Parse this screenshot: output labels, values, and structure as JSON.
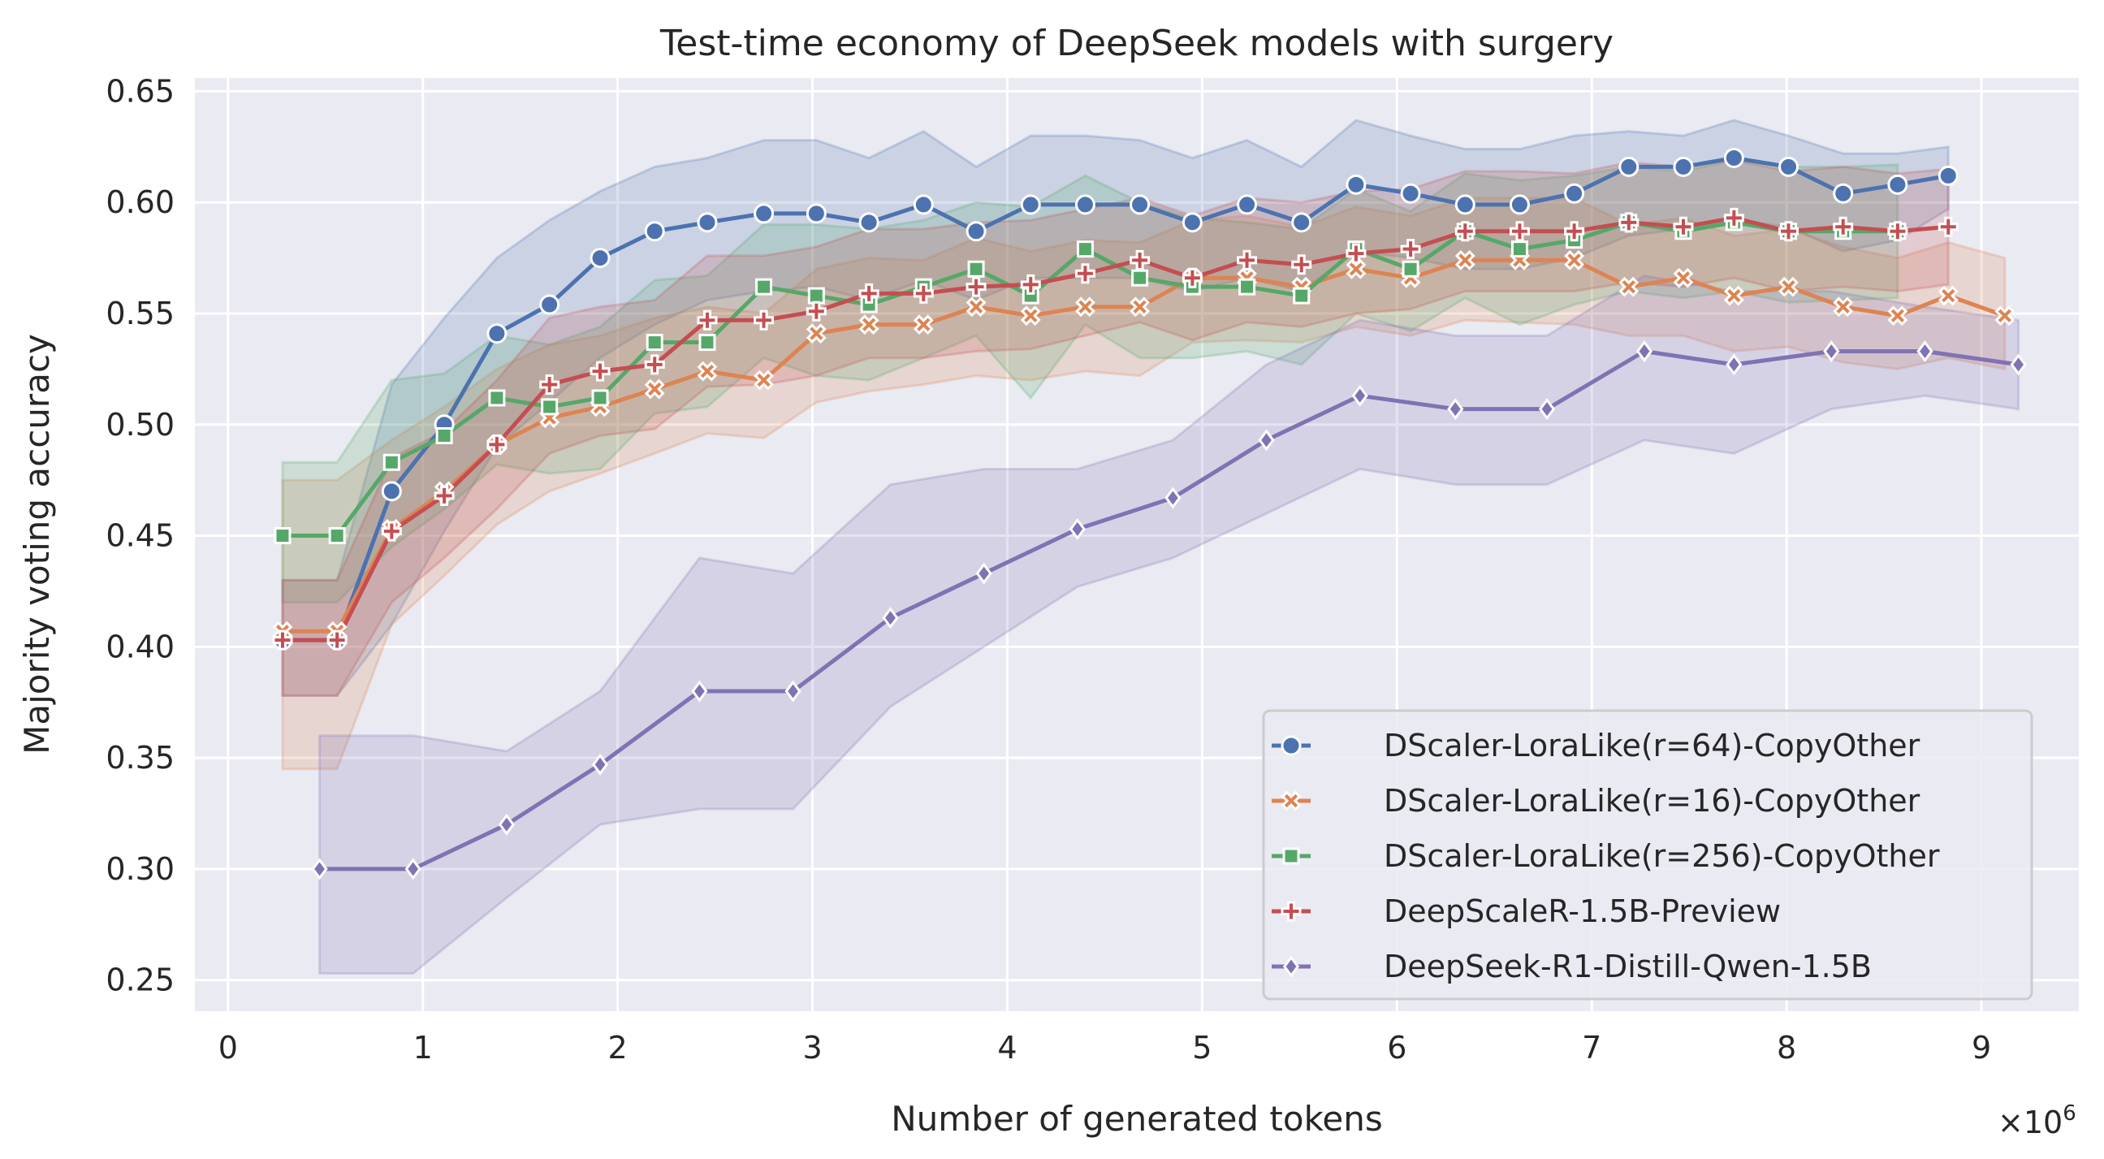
{
  "chart_data": {
    "type": "line",
    "title": "Test-time economy of DeepSeek models with surgery",
    "xlabel": "Number of generated tokens",
    "ylabel": "Majority voting accuracy",
    "x_multiplier_label": "×10^6",
    "x_multiplier_base": "×10",
    "x_multiplier_exp": "6",
    "xlim": [
      -0.17,
      9.5
    ],
    "ylim": [
      0.236,
      0.656
    ],
    "xticks": [
      0,
      1,
      2,
      3,
      4,
      5,
      6,
      7,
      8,
      9
    ],
    "xtick_labels": [
      "0",
      "1",
      "2",
      "3",
      "4",
      "5",
      "6",
      "7",
      "8",
      "9"
    ],
    "yticks": [
      0.25,
      0.3,
      0.35,
      0.4,
      0.45,
      0.5,
      0.55,
      0.6,
      0.65
    ],
    "ytick_labels": [
      "0.25",
      "0.30",
      "0.35",
      "0.40",
      "0.45",
      "0.50",
      "0.55",
      "0.60",
      "0.65"
    ],
    "grid": true,
    "legend_position": "lower-right",
    "background": "#eaeaf2",
    "series": [
      {
        "name": "DScaler-LoraLike(r=64)-CopyOther",
        "color": "#4c72b0",
        "marker": "circle",
        "x": [
          0.28,
          0.56,
          0.84,
          1.11,
          1.38,
          1.65,
          1.91,
          2.19,
          2.46,
          2.75,
          3.02,
          3.29,
          3.57,
          3.84,
          4.12,
          4.4,
          4.68,
          4.95,
          5.23,
          5.51,
          5.79,
          6.07,
          6.35,
          6.63,
          6.91,
          7.19,
          7.47,
          7.73,
          8.01,
          8.29,
          8.57,
          8.83
        ],
        "y": [
          0.403,
          0.403,
          0.47,
          0.5,
          0.541,
          0.554,
          0.575,
          0.587,
          0.591,
          0.595,
          0.595,
          0.591,
          0.599,
          0.587,
          0.599,
          0.599,
          0.599,
          0.591,
          0.599,
          0.591,
          0.608,
          0.604,
          0.599,
          0.599,
          0.604,
          0.616,
          0.616,
          0.62,
          0.616,
          0.604,
          0.608,
          0.612
        ],
        "lower": [
          0.378,
          0.378,
          0.41,
          0.452,
          0.49,
          0.51,
          0.53,
          0.545,
          0.556,
          0.56,
          0.562,
          0.556,
          0.565,
          0.556,
          0.566,
          0.566,
          0.566,
          0.56,
          0.566,
          0.56,
          0.578,
          0.575,
          0.57,
          0.57,
          0.575,
          0.585,
          0.588,
          0.592,
          0.589,
          0.578,
          0.583,
          0.597
        ],
        "upper": [
          0.43,
          0.43,
          0.518,
          0.548,
          0.575,
          0.592,
          0.605,
          0.616,
          0.62,
          0.628,
          0.628,
          0.62,
          0.632,
          0.616,
          0.63,
          0.63,
          0.628,
          0.62,
          0.628,
          0.616,
          0.637,
          0.63,
          0.624,
          0.624,
          0.63,
          0.632,
          0.63,
          0.637,
          0.63,
          0.622,
          0.622,
          0.625
        ]
      },
      {
        "name": "DScaler-LoraLike(r=16)-CopyOther",
        "color": "#dd8452",
        "marker": "x",
        "x": [
          0.28,
          0.56,
          0.84,
          1.11,
          1.38,
          1.65,
          1.91,
          2.19,
          2.46,
          2.75,
          3.02,
          3.29,
          3.57,
          3.84,
          4.12,
          4.4,
          4.68,
          4.95,
          5.23,
          5.51,
          5.79,
          6.07,
          6.35,
          6.63,
          6.91,
          7.19,
          7.47,
          7.73,
          8.01,
          8.29,
          8.57,
          8.83,
          9.12
        ],
        "y": [
          0.407,
          0.407,
          0.453,
          0.47,
          0.491,
          0.503,
          0.508,
          0.516,
          0.524,
          0.52,
          0.541,
          0.545,
          0.545,
          0.553,
          0.549,
          0.553,
          0.553,
          0.566,
          0.566,
          0.562,
          0.57,
          0.566,
          0.574,
          0.574,
          0.574,
          0.562,
          0.566,
          0.558,
          0.562,
          0.553,
          0.549,
          0.558,
          0.549
        ],
        "lower": [
          0.345,
          0.345,
          0.41,
          0.432,
          0.455,
          0.47,
          0.478,
          0.487,
          0.496,
          0.494,
          0.51,
          0.515,
          0.518,
          0.522,
          0.52,
          0.524,
          0.522,
          0.537,
          0.538,
          0.537,
          0.544,
          0.54,
          0.547,
          0.546,
          0.545,
          0.54,
          0.54,
          0.533,
          0.535,
          0.528,
          0.525,
          0.53,
          0.525
        ],
        "upper": [
          0.475,
          0.475,
          0.493,
          0.508,
          0.525,
          0.536,
          0.54,
          0.548,
          0.553,
          0.55,
          0.57,
          0.575,
          0.574,
          0.584,
          0.578,
          0.583,
          0.582,
          0.592,
          0.594,
          0.589,
          0.598,
          0.594,
          0.602,
          0.602,
          0.602,
          0.59,
          0.593,
          0.585,
          0.588,
          0.58,
          0.575,
          0.582,
          0.575
        ]
      },
      {
        "name": "DScaler-LoraLike(r=256)-CopyOther",
        "color": "#55a868",
        "marker": "square",
        "x": [
          0.28,
          0.56,
          0.84,
          1.11,
          1.38,
          1.65,
          1.91,
          2.19,
          2.46,
          2.75,
          3.02,
          3.29,
          3.57,
          3.84,
          4.12,
          4.4,
          4.68,
          4.95,
          5.23,
          5.51,
          5.79,
          6.07,
          6.35,
          6.63,
          6.91,
          7.19,
          7.47,
          7.73,
          8.01,
          8.29,
          8.57
        ],
        "y": [
          0.45,
          0.45,
          0.483,
          0.495,
          0.512,
          0.508,
          0.512,
          0.537,
          0.537,
          0.562,
          0.558,
          0.554,
          0.562,
          0.57,
          0.558,
          0.579,
          0.566,
          0.562,
          0.562,
          0.558,
          0.579,
          0.57,
          0.587,
          0.579,
          0.583,
          0.591,
          0.587,
          0.591,
          0.587,
          0.587,
          0.587
        ],
        "lower": [
          0.42,
          0.42,
          0.445,
          0.462,
          0.482,
          0.478,
          0.48,
          0.505,
          0.508,
          0.53,
          0.522,
          0.52,
          0.53,
          0.54,
          0.512,
          0.545,
          0.53,
          0.53,
          0.533,
          0.527,
          0.55,
          0.542,
          0.557,
          0.545,
          0.554,
          0.56,
          0.557,
          0.56,
          0.555,
          0.556,
          0.557
        ],
        "upper": [
          0.483,
          0.483,
          0.52,
          0.523,
          0.54,
          0.536,
          0.544,
          0.565,
          0.567,
          0.59,
          0.59,
          0.588,
          0.592,
          0.6,
          0.598,
          0.612,
          0.6,
          0.593,
          0.591,
          0.588,
          0.606,
          0.596,
          0.613,
          0.61,
          0.612,
          0.616,
          0.614,
          0.619,
          0.616,
          0.616,
          0.617
        ]
      },
      {
        "name": "DeepScaleR-1.5B-Preview",
        "color": "#c44e52",
        "marker": "plus",
        "x": [
          0.28,
          0.56,
          0.84,
          1.11,
          1.38,
          1.65,
          1.91,
          2.19,
          2.46,
          2.75,
          3.02,
          3.29,
          3.57,
          3.84,
          4.12,
          4.4,
          4.68,
          4.95,
          5.23,
          5.51,
          5.79,
          6.07,
          6.35,
          6.63,
          6.91,
          7.19,
          7.47,
          7.73,
          8.01,
          8.29,
          8.57,
          8.83
        ],
        "y": [
          0.403,
          0.403,
          0.452,
          0.468,
          0.491,
          0.518,
          0.524,
          0.527,
          0.547,
          0.547,
          0.551,
          0.559,
          0.559,
          0.562,
          0.563,
          0.568,
          0.574,
          0.566,
          0.574,
          0.572,
          0.577,
          0.579,
          0.587,
          0.587,
          0.587,
          0.591,
          0.589,
          0.593,
          0.587,
          0.589,
          0.587,
          0.589
        ],
        "lower": [
          0.378,
          0.378,
          0.42,
          0.44,
          0.462,
          0.487,
          0.495,
          0.498,
          0.517,
          0.518,
          0.522,
          0.53,
          0.53,
          0.533,
          0.534,
          0.54,
          0.546,
          0.538,
          0.546,
          0.544,
          0.55,
          0.552,
          0.56,
          0.56,
          0.56,
          0.564,
          0.562,
          0.566,
          0.56,
          0.562,
          0.56,
          0.563
        ],
        "upper": [
          0.43,
          0.43,
          0.485,
          0.497,
          0.52,
          0.548,
          0.553,
          0.556,
          0.576,
          0.576,
          0.58,
          0.588,
          0.588,
          0.591,
          0.592,
          0.597,
          0.602,
          0.594,
          0.602,
          0.6,
          0.605,
          0.606,
          0.614,
          0.614,
          0.613,
          0.618,
          0.616,
          0.619,
          0.614,
          0.616,
          0.613,
          0.615
        ]
      },
      {
        "name": "DeepSeek-R1-Distill-Qwen-1.5B",
        "color": "#8172b3",
        "marker": "diamond",
        "x": [
          0.47,
          0.95,
          1.43,
          1.91,
          2.42,
          2.9,
          3.4,
          3.88,
          4.36,
          4.85,
          5.33,
          5.81,
          6.3,
          6.77,
          7.27,
          7.73,
          8.23,
          8.71,
          9.19
        ],
        "y": [
          0.3,
          0.3,
          0.32,
          0.347,
          0.38,
          0.38,
          0.413,
          0.433,
          0.453,
          0.467,
          0.493,
          0.513,
          0.507,
          0.507,
          0.533,
          0.527,
          0.533,
          0.533,
          0.527
        ],
        "lower": [
          0.253,
          0.253,
          0.287,
          0.32,
          0.327,
          0.327,
          0.373,
          0.4,
          0.427,
          0.44,
          0.46,
          0.48,
          0.473,
          0.473,
          0.493,
          0.487,
          0.507,
          0.513,
          0.507
        ],
        "upper": [
          0.36,
          0.36,
          0.353,
          0.38,
          0.44,
          0.433,
          0.473,
          0.48,
          0.48,
          0.493,
          0.527,
          0.547,
          0.54,
          0.54,
          0.567,
          0.56,
          0.56,
          0.553,
          0.547
        ]
      }
    ]
  }
}
